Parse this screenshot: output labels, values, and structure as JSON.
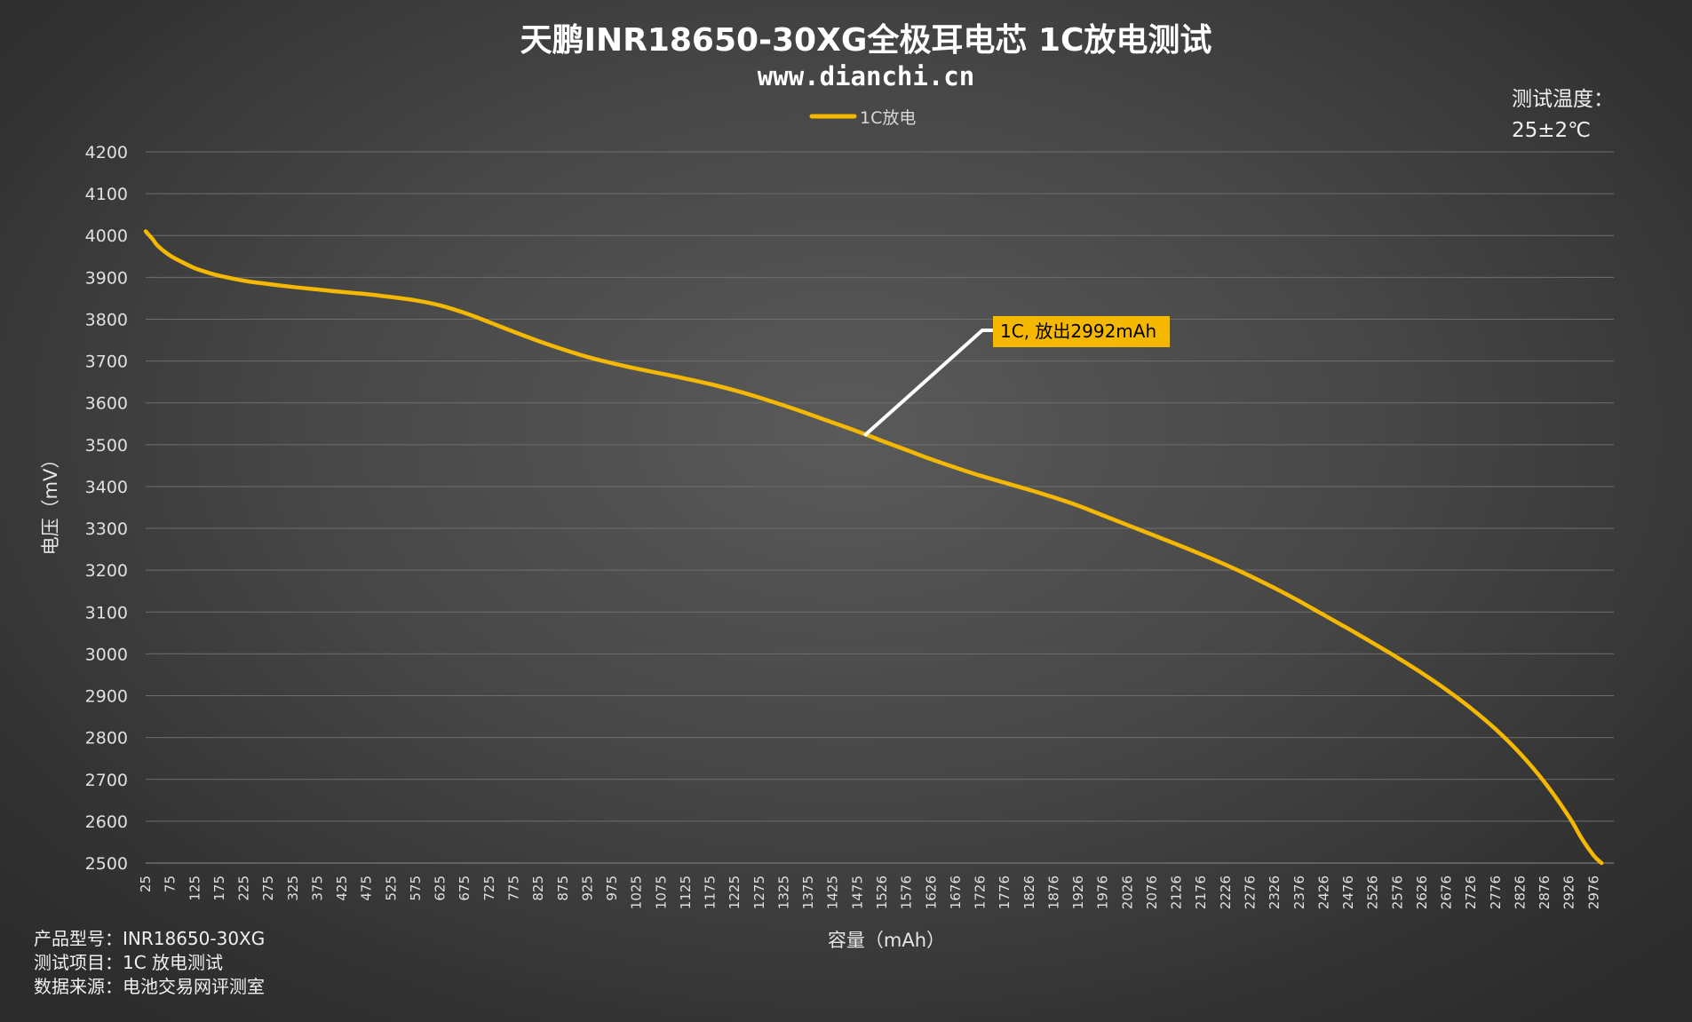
{
  "title": "天鹏INR18650-30XG全极耳电芯 1C放电测试",
  "subtitle": "www.dianchi.cn",
  "temperature_note": {
    "line1": "测试温度：",
    "line2": "25±2℃"
  },
  "footer": {
    "line1": "产品型号：INR18650-30XG",
    "line2": "测试项目：1C 放电测试",
    "line3": "数据来源：电池交易网评测室"
  },
  "annotation": {
    "text": "1C, 放出2992mAh",
    "point": {
      "x": 1490,
      "y": 3522
    }
  },
  "colors": {
    "series": "#f5b800",
    "annotation_bg": "#f5b800",
    "grid": "#6e6e6e",
    "leader": "#ffffff"
  },
  "chart_data": {
    "type": "line",
    "title": "天鹏INR18650-30XG全极耳电芯 1C放电测试",
    "xlabel": "容量（mAh）",
    "ylabel": "电压（mV）",
    "xlim": [
      25,
      3017
    ],
    "ylim": [
      2500,
      4200
    ],
    "y_ticks": [
      2500,
      2600,
      2700,
      2800,
      2900,
      3000,
      3100,
      3200,
      3300,
      3400,
      3500,
      3600,
      3700,
      3800,
      3900,
      4000,
      4100,
      4200
    ],
    "x_tick_labels": [
      "25",
      "75",
      "125",
      "175",
      "225",
      "275",
      "325",
      "375",
      "425",
      "475",
      "525",
      "575",
      "625",
      "675",
      "725",
      "775",
      "825",
      "875",
      "925",
      "975",
      "1025",
      "1075",
      "1125",
      "1175",
      "1225",
      "1275",
      "1325",
      "1375",
      "1425",
      "1475",
      "1526",
      "1576",
      "1626",
      "1676",
      "1726",
      "1776",
      "1826",
      "1876",
      "1926",
      "1976",
      "2026",
      "2076",
      "2126",
      "2176",
      "2226",
      "2276",
      "2326",
      "2376",
      "2426",
      "2476",
      "2526",
      "2576",
      "2626",
      "2676",
      "2726",
      "2776",
      "2826",
      "2876",
      "2926",
      "2976"
    ],
    "grid": true,
    "legend_position": "top-center",
    "series": [
      {
        "name": "1C放电",
        "color": "#f5b800",
        "points": [
          [
            25,
            4010
          ],
          [
            40,
            3990
          ],
          [
            50,
            3975
          ],
          [
            75,
            3952
          ],
          [
            100,
            3936
          ],
          [
            125,
            3922
          ],
          [
            150,
            3912
          ],
          [
            175,
            3904
          ],
          [
            225,
            3892
          ],
          [
            275,
            3884
          ],
          [
            325,
            3877
          ],
          [
            375,
            3871
          ],
          [
            425,
            3865
          ],
          [
            475,
            3860
          ],
          [
            525,
            3853
          ],
          [
            575,
            3845
          ],
          [
            625,
            3833
          ],
          [
            675,
            3815
          ],
          [
            725,
            3793
          ],
          [
            775,
            3770
          ],
          [
            825,
            3748
          ],
          [
            875,
            3728
          ],
          [
            925,
            3710
          ],
          [
            975,
            3695
          ],
          [
            1025,
            3682
          ],
          [
            1075,
            3670
          ],
          [
            1125,
            3658
          ],
          [
            1175,
            3645
          ],
          [
            1225,
            3630
          ],
          [
            1275,
            3613
          ],
          [
            1325,
            3594
          ],
          [
            1375,
            3574
          ],
          [
            1425,
            3553
          ],
          [
            1475,
            3532
          ],
          [
            1526,
            3509
          ],
          [
            1576,
            3487
          ],
          [
            1626,
            3465
          ],
          [
            1676,
            3445
          ],
          [
            1726,
            3426
          ],
          [
            1776,
            3409
          ],
          [
            1826,
            3392
          ],
          [
            1876,
            3374
          ],
          [
            1926,
            3354
          ],
          [
            1976,
            3331
          ],
          [
            2026,
            3308
          ],
          [
            2076,
            3285
          ],
          [
            2126,
            3262
          ],
          [
            2176,
            3238
          ],
          [
            2226,
            3213
          ],
          [
            2276,
            3186
          ],
          [
            2326,
            3157
          ],
          [
            2376,
            3126
          ],
          [
            2426,
            3093
          ],
          [
            2476,
            3060
          ],
          [
            2526,
            3026
          ],
          [
            2576,
            2991
          ],
          [
            2626,
            2954
          ],
          [
            2676,
            2914
          ],
          [
            2726,
            2870
          ],
          [
            2776,
            2820
          ],
          [
            2826,
            2762
          ],
          [
            2876,
            2693
          ],
          [
            2926,
            2610
          ],
          [
            2951,
            2560
          ],
          [
            2976,
            2518
          ],
          [
            2992,
            2500
          ]
        ]
      }
    ]
  }
}
